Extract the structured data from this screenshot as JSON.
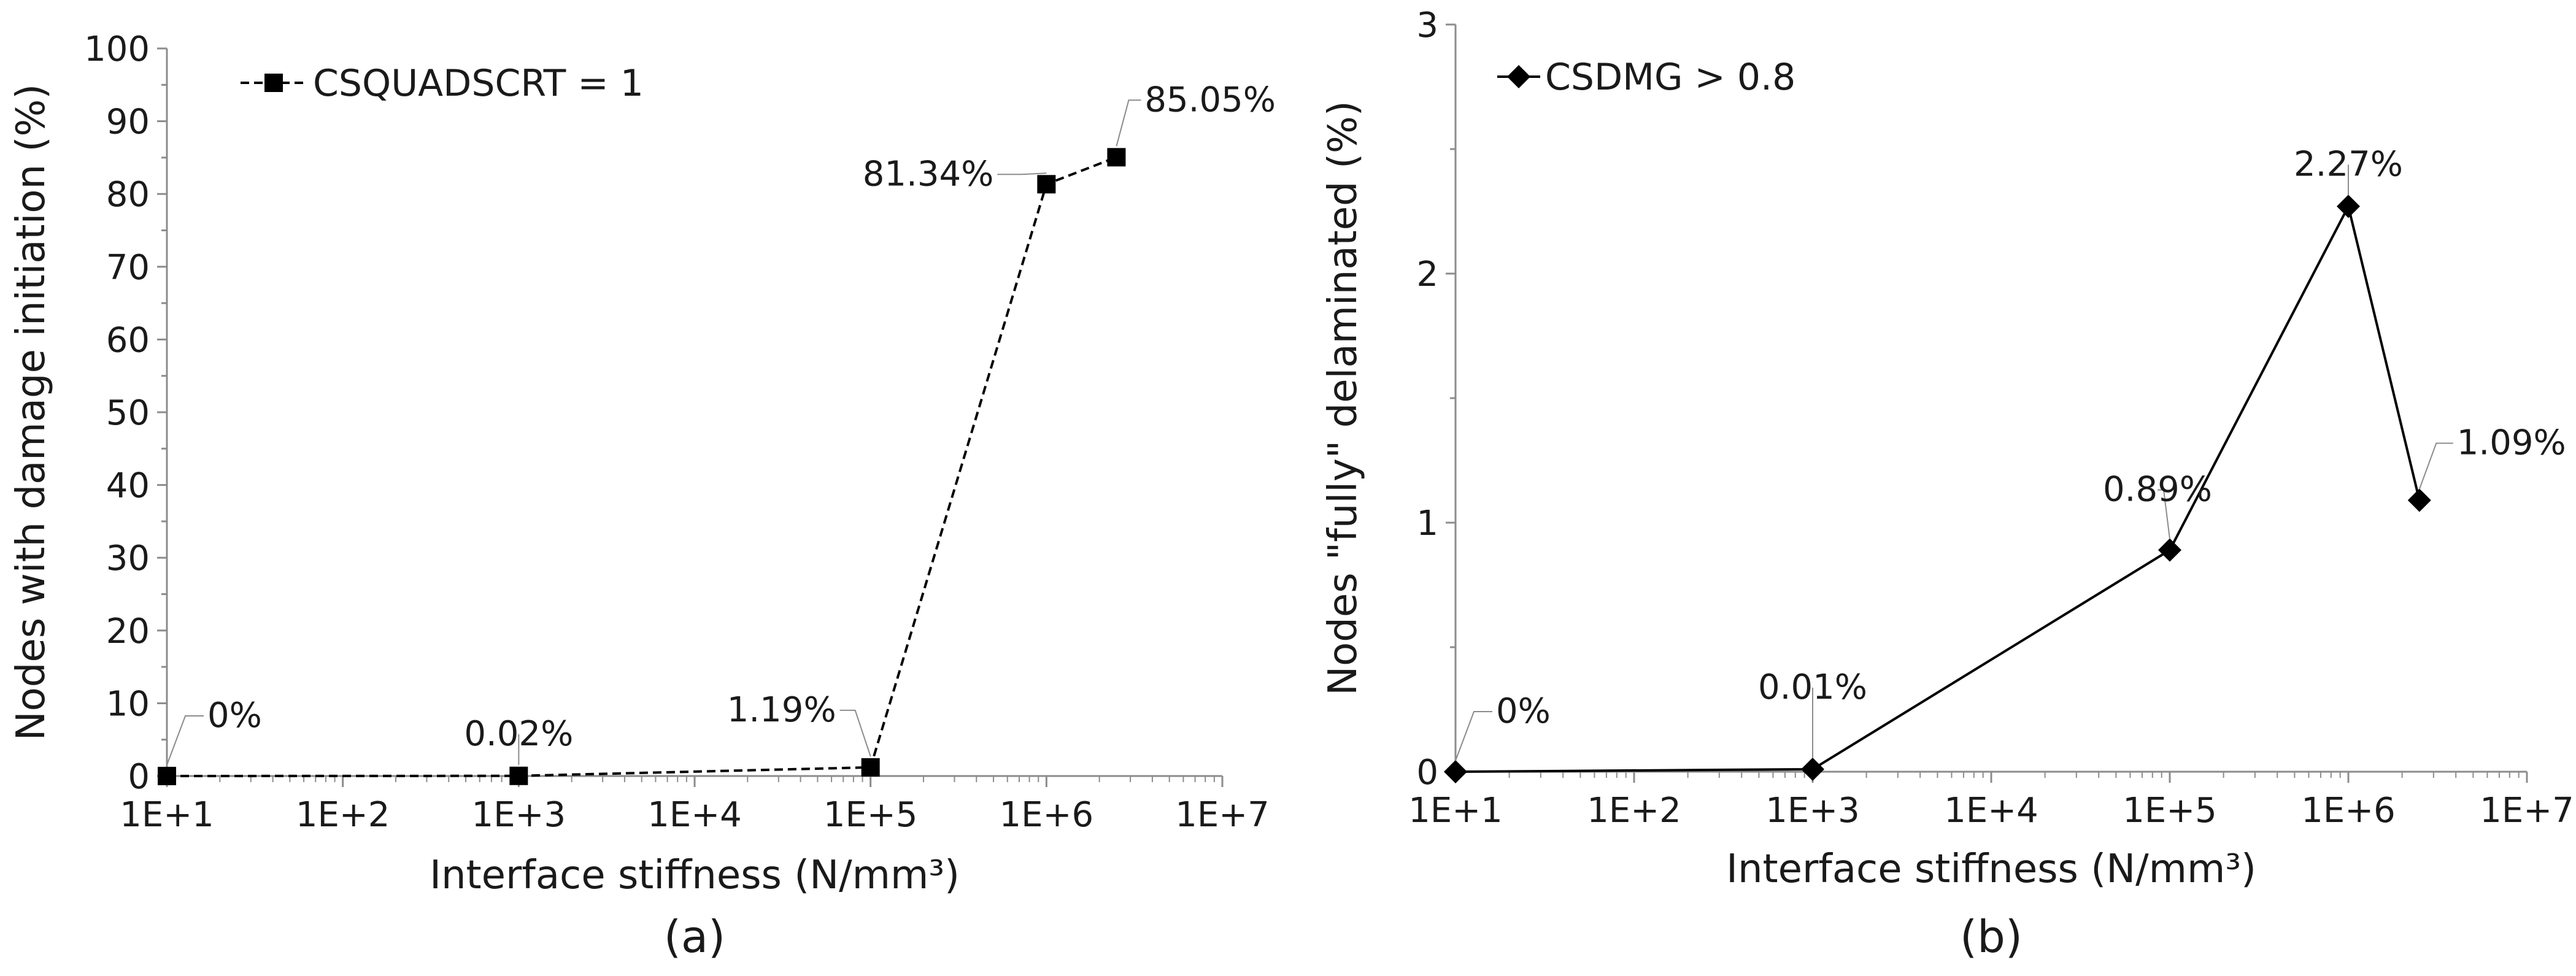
{
  "chart_data": [
    {
      "type": "line",
      "caption": "(a)",
      "xlabel": "Interface stiffness (N/mm³)",
      "ylabel": "Nodes with damage initiation (%)",
      "x_scale": "log",
      "xlim": [
        10,
        10000000
      ],
      "x_ticks": [
        10,
        100,
        1000,
        10000,
        100000,
        1000000,
        10000000
      ],
      "x_tick_labels": [
        "1E+1",
        "1E+2",
        "1E+3",
        "1E+4",
        "1E+5",
        "1E+6",
        "1E+7"
      ],
      "ylim": [
        0,
        100
      ],
      "y_ticks": [
        0,
        10,
        20,
        30,
        40,
        50,
        60,
        70,
        80,
        90,
        100
      ],
      "y_tick_labels": [
        "0",
        "10",
        "20",
        "30",
        "40",
        "50",
        "60",
        "70",
        "80",
        "90",
        "100"
      ],
      "grid": false,
      "legend_position": "top-left",
      "series": [
        {
          "name": "CSQUADSCRT = 1",
          "line_style": "dashed",
          "marker": "square",
          "color": "#000000",
          "x": [
            10,
            1000,
            100000,
            1000000,
            2500000
          ],
          "y": [
            0,
            0.02,
            1.19,
            81.34,
            85.05
          ],
          "labels": [
            "0%",
            "0.02%",
            "1.19%",
            "81.34%",
            "85.05%"
          ]
        }
      ]
    },
    {
      "type": "line",
      "caption": "(b)",
      "xlabel": "Interface stiffness (N/mm³)",
      "ylabel": "Nodes \"fully\" delaminated (%)",
      "x_scale": "log",
      "xlim": [
        10,
        10000000
      ],
      "x_ticks": [
        10,
        100,
        1000,
        10000,
        100000,
        1000000,
        10000000
      ],
      "x_tick_labels": [
        "1E+1",
        "1E+2",
        "1E+3",
        "1E+4",
        "1E+5",
        "1E+6",
        "1E+7"
      ],
      "ylim": [
        0,
        3
      ],
      "y_ticks": [
        0,
        1,
        2,
        3
      ],
      "y_tick_labels": [
        "0",
        "1",
        "2",
        "3"
      ],
      "grid": false,
      "legend_position": "top-left",
      "series": [
        {
          "name": "CSDMG > 0.8",
          "line_style": "solid",
          "marker": "diamond",
          "color": "#000000",
          "x": [
            10,
            1000,
            100000,
            1000000,
            2500000
          ],
          "y": [
            0,
            0.01,
            0.89,
            2.27,
            1.09
          ],
          "labels": [
            "0%",
            "0.01%",
            "0.89%",
            "2.27%",
            "1.09%"
          ]
        }
      ]
    }
  ]
}
